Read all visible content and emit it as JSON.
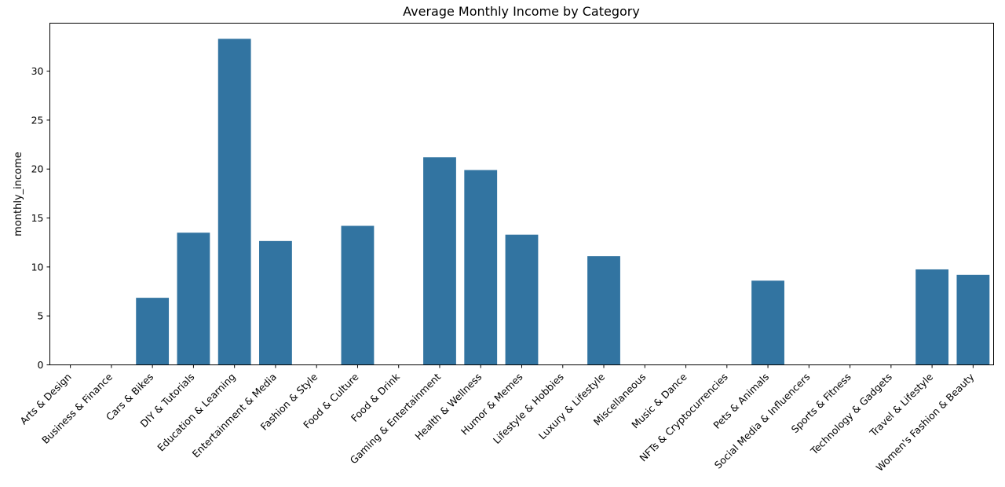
{
  "chart_data": {
    "type": "bar",
    "title": "Average Monthly Income by Category",
    "xlabel": "",
    "ylabel": "monthly_income",
    "ylim": [
      0,
      34.9
    ],
    "yticks": [
      0,
      5,
      10,
      15,
      20,
      25,
      30
    ],
    "grid": false,
    "bar_color": "#3274a1",
    "categories": [
      "Arts & Design",
      "Business & Finance",
      "Cars & Bikes",
      "DIY & Tutorials",
      "Education & Learning",
      "Entertainment & Media",
      "Fashion & Style",
      "Food & Culture",
      "Food & Drink",
      "Gaming & Entertainment",
      "Health & Wellness",
      "Humor & Memes",
      "Lifestyle & Hobbies",
      "Luxury & Lifestyle",
      "Miscellaneous",
      "Music & Dance",
      "NFTs & Cryptocurrencies",
      "Pets & Animals",
      "Social Media & Influencers",
      "Sports & Fitness",
      "Technology & Gadgets",
      "Travel & Lifestyle",
      "Women's Fashion & Beauty"
    ],
    "values": [
      0,
      0,
      6.85,
      13.5,
      33.3,
      12.65,
      0,
      14.2,
      0,
      21.2,
      19.9,
      13.3,
      0,
      11.1,
      0,
      0,
      0,
      8.6,
      0,
      0,
      0,
      9.75,
      9.2
    ]
  }
}
